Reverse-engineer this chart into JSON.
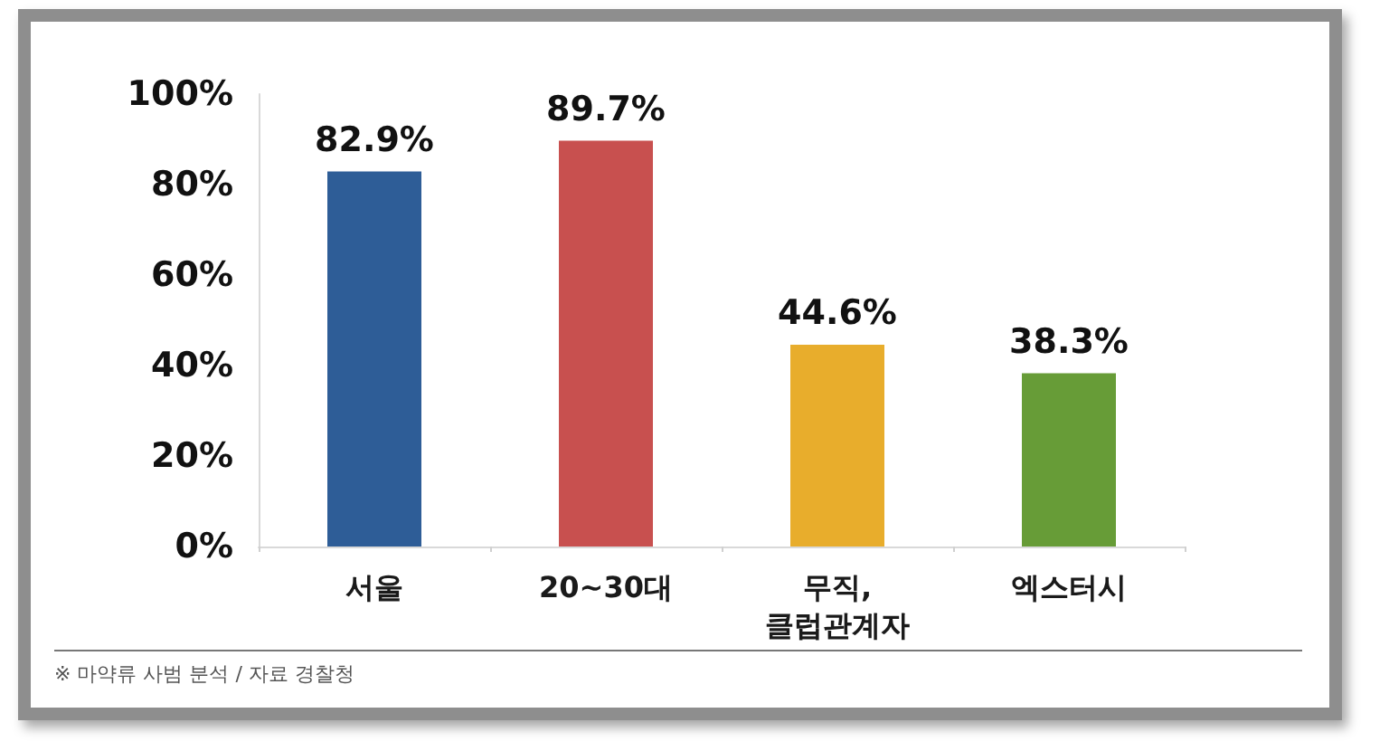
{
  "chart_data": {
    "type": "bar",
    "categories": [
      "서울",
      "20~30대",
      "무직,\n클럽관계자",
      "엑스터시"
    ],
    "values": [
      82.9,
      89.7,
      44.6,
      38.3
    ],
    "colors": [
      "#2e5d97",
      "#c8504f",
      "#e8ad2c",
      "#679c37"
    ],
    "value_labels": [
      "82.9%",
      "89.7%",
      "44.6%",
      "38.3%"
    ],
    "ylim": [
      0,
      100
    ],
    "yticks": [
      {
        "value": 0,
        "label": "0%"
      },
      {
        "value": 20,
        "label": "20%"
      },
      {
        "value": 40,
        "label": "40%"
      },
      {
        "value": 60,
        "label": "60%"
      },
      {
        "value": 80,
        "label": "80%"
      },
      {
        "value": 100,
        "label": "100%"
      }
    ],
    "grid": false,
    "annotations": [
      "※ 마약류 사범 분석 / 자료 경찰청"
    ]
  }
}
